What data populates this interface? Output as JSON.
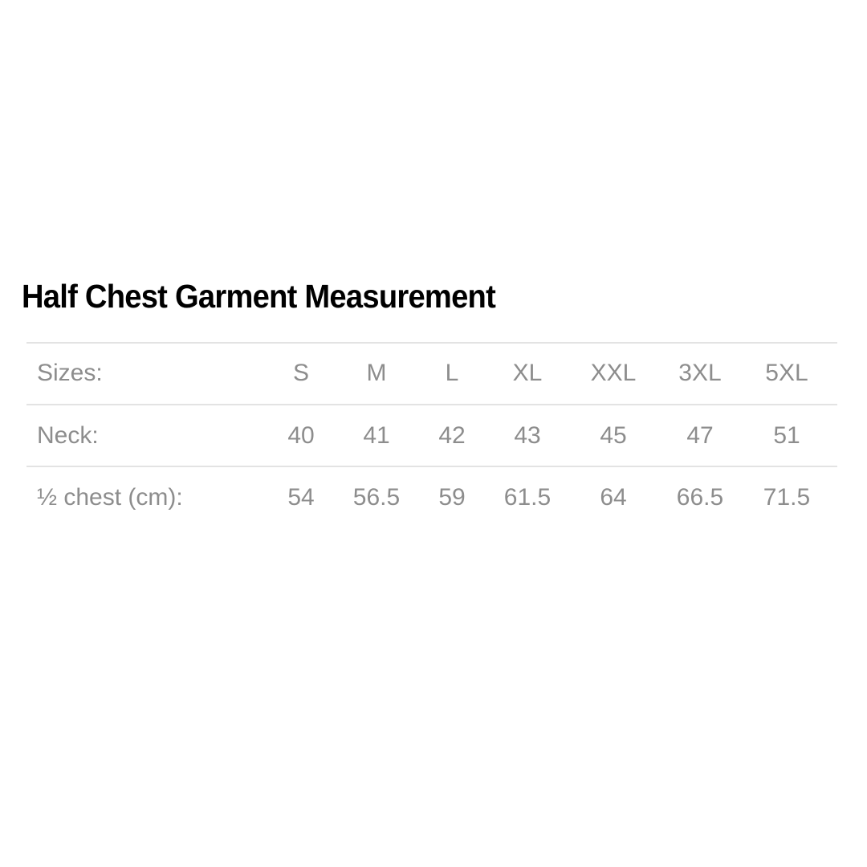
{
  "title": "Half Chest Garment Measurement",
  "table": {
    "rows": [
      {
        "label": "Sizes:",
        "values": [
          "S",
          "M",
          "L",
          "XL",
          "XXL",
          "3XL",
          "5XL"
        ]
      },
      {
        "label": "Neck:",
        "values": [
          "40",
          "41",
          "42",
          "43",
          "45",
          "47",
          "51"
        ]
      },
      {
        "label": "½ chest (cm):",
        "values": [
          "54",
          "56.5",
          "59",
          "61.5",
          "64",
          "66.5",
          "71.5"
        ]
      }
    ]
  },
  "colors": {
    "title": "#000000",
    "text": "#8d8d8d",
    "rule": "#e3e3e3"
  }
}
